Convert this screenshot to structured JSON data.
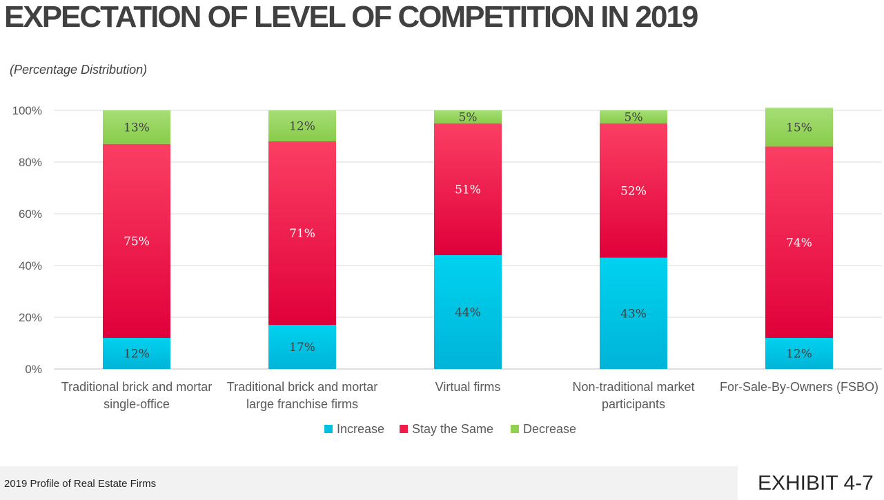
{
  "header": {
    "title": "EXPECTATION OF LEVEL OF COMPETITION IN 2019",
    "subtitle": "(Percentage Distribution)"
  },
  "footer": {
    "source": "2019 Profile of Real Estate Firms",
    "exhibit": "EXHIBIT 4-7"
  },
  "chart_data": {
    "type": "bar",
    "stacked": true,
    "title": "EXPECTATION OF LEVEL OF COMPETITION IN 2019",
    "subtitle": "(Percentage Distribution)",
    "categories": [
      [
        "Traditional brick and mortar",
        "single-office"
      ],
      [
        "Traditional brick and mortar",
        "large franchise firms"
      ],
      [
        "Virtual firms"
      ],
      [
        "Non-traditional market",
        "participants"
      ],
      [
        "For-Sale-By-Owners (FSBO)"
      ]
    ],
    "series": [
      {
        "name": "Increase",
        "color": "#00c0e0",
        "values": [
          12,
          17,
          44,
          43,
          12
        ],
        "labels": [
          "12%",
          "17%",
          "44%",
          "43%",
          "12%"
        ]
      },
      {
        "name": "Stay the Same",
        "color": "#f01c4a",
        "values": [
          75,
          71,
          51,
          52,
          74
        ],
        "labels": [
          "75%",
          "71%",
          "51%",
          "52%",
          "74%"
        ]
      },
      {
        "name": "Decrease",
        "color": "#92d050",
        "values": [
          13,
          12,
          5,
          5,
          15
        ],
        "labels": [
          "13%",
          "12%",
          "5%",
          "5%",
          "15%"
        ]
      }
    ],
    "ylim": [
      0,
      100
    ],
    "yticks": [
      "0%",
      "20%",
      "40%",
      "60%",
      "80%",
      "100%"
    ],
    "ytick_values": [
      0,
      20,
      40,
      60,
      80,
      100
    ],
    "grid": true,
    "legend": "bottom"
  }
}
